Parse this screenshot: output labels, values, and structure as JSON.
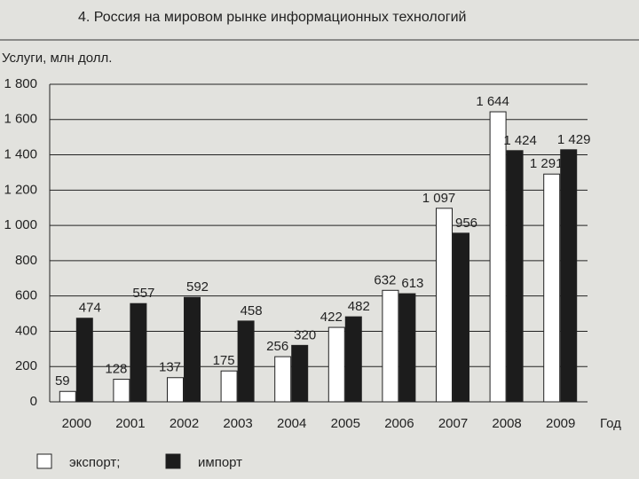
{
  "chart_data": {
    "type": "bar",
    "title": "4. Россия на мировом рынке информационных технологий",
    "y_label": "Услуги, млн долл.",
    "x_label": "Год",
    "categories": [
      "2000",
      "2001",
      "2002",
      "2003",
      "2004",
      "2005",
      "2006",
      "2007",
      "2008",
      "2009"
    ],
    "series": [
      {
        "name": "экспорт;",
        "color": "#ffffff",
        "values": [
          59,
          128,
          137,
          175,
          256,
          422,
          632,
          1097,
          1644,
          1291
        ],
        "value_labels": [
          "59",
          "128",
          "137",
          "175",
          "256",
          "422",
          "632",
          "1 097",
          "1 644",
          "1 291"
        ]
      },
      {
        "name": "импорт",
        "color": "#1c1c1c",
        "values": [
          474,
          557,
          592,
          458,
          320,
          482,
          613,
          956,
          1424,
          1429
        ],
        "value_labels": [
          "474",
          "557",
          "592",
          "458",
          "320",
          "482",
          "613",
          "956",
          "1 424",
          "1 429"
        ]
      }
    ],
    "ylim": [
      0,
      1800
    ],
    "yticks": [
      0,
      200,
      400,
      600,
      800,
      {
        "value": 1000,
        "label": "1 000"
      },
      {
        "value": 1200,
        "label": "1 200"
      },
      {
        "value": 1400,
        "label": "1 400"
      },
      {
        "value": 1600,
        "label": "1 600"
      },
      {
        "value": 1800,
        "label": "1 800"
      }
    ],
    "grid": true
  }
}
